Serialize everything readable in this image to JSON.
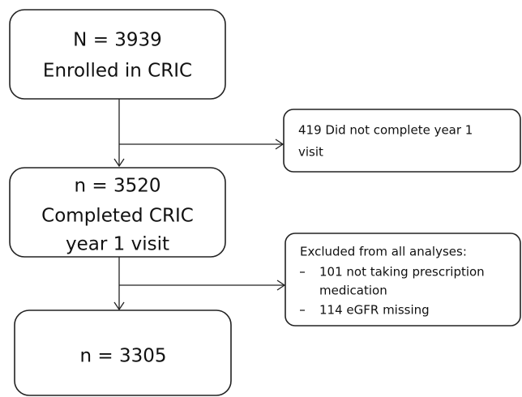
{
  "nodes": [
    {
      "lines": [
        "N = 3939",
        "Enrolled in CRIC"
      ]
    },
    {
      "lines": [
        "419 Did not complete year 1",
        "visit"
      ]
    },
    {
      "lines": [
        "n = 3520",
        "Completed CRIC",
        "year 1 visit"
      ]
    },
    {
      "title": "Excluded from all analyses:",
      "items": [
        {
          "lines": [
            "101 not taking prescription",
            "medication"
          ]
        },
        {
          "lines": [
            "114 eGFR missing"
          ]
        }
      ]
    },
    {
      "lines": [
        "n = 3305"
      ]
    }
  ]
}
